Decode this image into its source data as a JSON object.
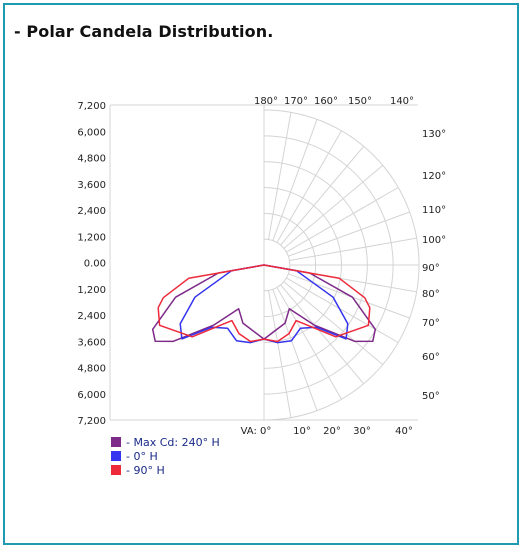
{
  "page": {
    "title": "- Polar Candela Distribution."
  },
  "chart_data": {
    "type": "polar-line",
    "title": "- Polar Candela Distribution.",
    "value_unit": "cd",
    "value_axis": {
      "range": [
        0,
        7200
      ],
      "tick_labels": [
        "7,200",
        "6,000",
        "4,800",
        "3,600",
        "2,400",
        "1,200",
        "0.00",
        "1,200",
        "2,400",
        "3,600",
        "4,800",
        "6,000",
        "7,200"
      ]
    },
    "angle_labels_top": [
      "180°",
      "170°",
      "160°",
      "150°",
      "140°"
    ],
    "angle_labels_right": [
      "130°",
      "120°",
      "110°",
      "100°",
      "90°",
      "80°",
      "70°",
      "60°",
      "50°"
    ],
    "angle_labels_bottom": [
      "VA: 0°",
      "10°",
      "20°",
      "30°",
      "40°"
    ],
    "grid": true,
    "legend_position": "bottom-left",
    "series": [
      {
        "name": "- Max Cd: 240° H",
        "color": "#7d2a88",
        "points": [
          {
            "angle": 0,
            "value": 3440
          },
          {
            "angle": 20,
            "value": 2870
          },
          {
            "angle": 30,
            "value": 2350
          },
          {
            "angle": 40,
            "value": 3650
          },
          {
            "angle": 50,
            "value": 5520
          },
          {
            "angle": 55,
            "value": 6170
          },
          {
            "angle": 60,
            "value": 5970
          },
          {
            "angle": 70,
            "value": 4370
          },
          {
            "angle": 80,
            "value": 2150
          },
          {
            "angle": 90,
            "value": 0
          }
        ]
      },
      {
        "name": "- 0° H",
        "color": "#3434ee",
        "points": [
          {
            "angle": 0,
            "value": 3440
          },
          {
            "angle": 10,
            "value": 3660
          },
          {
            "angle": 20,
            "value": 3740
          },
          {
            "angle": 30,
            "value": 3390
          },
          {
            "angle": 40,
            "value": 3770
          },
          {
            "angle": 48,
            "value": 5130
          },
          {
            "angle": 55,
            "value": 4750
          },
          {
            "angle": 65,
            "value": 3540
          },
          {
            "angle": 80,
            "value": 1540
          },
          {
            "angle": 90,
            "value": 0
          }
        ]
      },
      {
        "name": "- 90° H",
        "color": "#ee2a3a",
        "points": [
          {
            "angle": 0,
            "value": 3440
          },
          {
            "angle": 10,
            "value": 3610
          },
          {
            "angle": 20,
            "value": 3390
          },
          {
            "angle": 30,
            "value": 2980
          },
          {
            "angle": 45,
            "value": 4720
          },
          {
            "angle": 60,
            "value": 5600
          },
          {
            "angle": 68,
            "value": 5300
          },
          {
            "angle": 72,
            "value": 4920
          },
          {
            "angle": 80,
            "value": 3550
          },
          {
            "angle": 90,
            "value": 0
          }
        ]
      }
    ]
  }
}
